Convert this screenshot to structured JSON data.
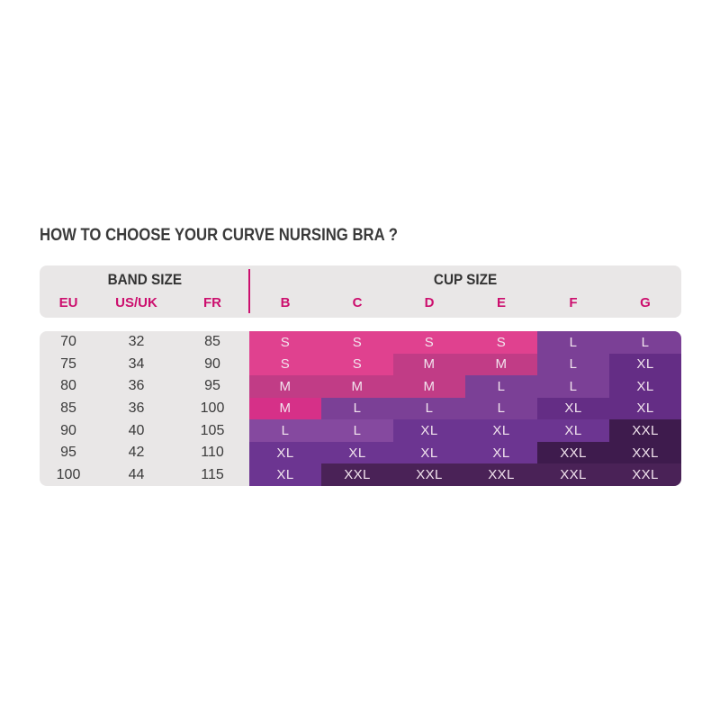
{
  "chart_data": {
    "type": "table",
    "title": "HOW TO CHOOSE YOUR CURVE NURSING BRA ?",
    "band_size_header": "BAND SIZE",
    "cup_size_header": "CUP SIZE",
    "band_columns": [
      "EU",
      "US/UK",
      "FR"
    ],
    "cup_columns": [
      "B",
      "C",
      "D",
      "E",
      "F",
      "G"
    ],
    "band_rows": [
      [
        "70",
        "32",
        "85"
      ],
      [
        "75",
        "34",
        "90"
      ],
      [
        "80",
        "36",
        "95"
      ],
      [
        "85",
        "36",
        "100"
      ],
      [
        "90",
        "40",
        "105"
      ],
      [
        "95",
        "42",
        "110"
      ],
      [
        "100",
        "44",
        "115"
      ]
    ],
    "cup_rows": [
      [
        "S",
        "S",
        "S",
        "S",
        "L",
        "L"
      ],
      [
        "S",
        "S",
        "M",
        "M",
        "L",
        "XL"
      ],
      [
        "M",
        "M",
        "M",
        "L",
        "L",
        "XL"
      ],
      [
        "M",
        "L",
        "L",
        "L",
        "XL",
        "XL"
      ],
      [
        "L",
        "L",
        "XL",
        "XL",
        "XL",
        "XXL"
      ],
      [
        "XL",
        "XL",
        "XL",
        "XL",
        "XXL",
        "XXL"
      ],
      [
        "XL",
        "XXL",
        "XXL",
        "XXL",
        "XXL",
        "XXL"
      ]
    ],
    "cup_cell_colors": [
      [
        "pink",
        "pink",
        "pink",
        "pink",
        "purple",
        "purple"
      ],
      [
        "pink",
        "pink",
        "magenta",
        "magenta",
        "purple",
        "violet"
      ],
      [
        "magenta",
        "magenta",
        "magenta",
        "purple",
        "purple",
        "violet"
      ],
      [
        "magenta_bright",
        "purple",
        "purple",
        "purple",
        "violet",
        "violet"
      ],
      [
        "purple_light",
        "purple_light",
        "violet_light",
        "violet_light",
        "violet_light",
        "plum_darkest"
      ],
      [
        "violet_light",
        "violet_light",
        "violet_light",
        "violet_light",
        "plum_darkest",
        "plum_darkest"
      ],
      [
        "violet_light",
        "plum",
        "plum",
        "plum",
        "plum",
        "plum"
      ]
    ],
    "legend": "cell color encodes cup size: S bright pink through XXL dark plum"
  },
  "colors": {
    "pink": "#E0418F",
    "magenta": "#C13C86",
    "magenta_bright": "#D63088",
    "purple": "#7B4096",
    "purple_light": "#85499F",
    "violet": "#642D85",
    "violet_light": "#6C3591",
    "plum_darkest": "#3E1B4D",
    "plum": "#4A2257",
    "accent_pink": "#CC0F6E",
    "panel_bg": "#E9E7E7",
    "dark_text": "#3A3A3A",
    "cell_text": "#F2E4EE"
  }
}
